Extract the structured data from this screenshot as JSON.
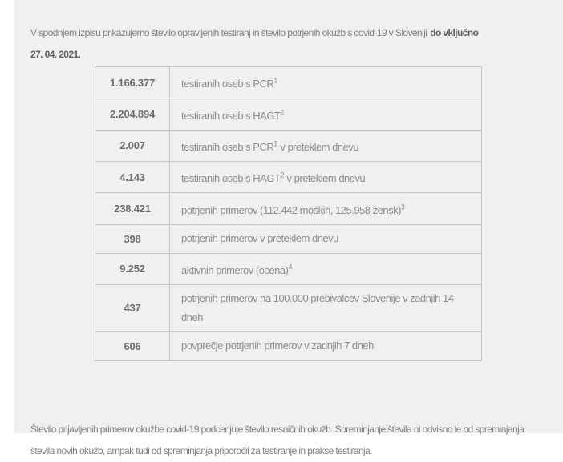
{
  "page": {
    "background": "#f1f0f0",
    "left_strip": "#ffffff",
    "border_color": "#c7c6c6"
  },
  "intro": {
    "line1": "V spodnjem izpisu prikazujemo število opravljenih testiranj in število potrjenih okužb s covid-19 v Sloveniji",
    "line1_bold": "do vključno",
    "line2_bold": "27. 04. 2021."
  },
  "table": {
    "rows": [
      {
        "value": "1.166.377",
        "label": "testiranih oseb s PCR",
        "sup": "1",
        "label_after": ""
      },
      {
        "value": "2.204.894",
        "label": "testiranih oseb s HAGT",
        "sup": "2",
        "label_after": ""
      },
      {
        "value": "2.007",
        "label": "testiranih oseb s PCR",
        "sup": "1",
        "label_after": " v preteklem dnevu"
      },
      {
        "value": "4.143",
        "label": "testiranih oseb s HAGT",
        "sup": "2",
        "label_after": " v preteklem dnevu"
      },
      {
        "value": "238.421",
        "label": "potrjenih primerov  (112.442 moških, 125.958 žensk)",
        "sup": "3",
        "label_after": ""
      },
      {
        "value": "398",
        "label": "potrjenih primerov v preteklem dnevu",
        "sup": "",
        "label_after": ""
      },
      {
        "value": "9.252",
        "label": "aktivnih primerov (ocena)",
        "sup": "4",
        "label_after": ""
      },
      {
        "value": "437",
        "label": "potrjenih primerov na 100.000 prebivalcev Slovenije v zadnjih 14 dneh",
        "sup": "",
        "label_after": ""
      },
      {
        "value": "606",
        "label": "povprečje potrjenih primerov v zadnjih 7 dneh",
        "sup": "",
        "label_after": ""
      }
    ]
  },
  "footer": {
    "text": "Število prijavljenih primerov okužbe covid-19 podcenjuje število resničnih okužb. Spreminjanje števila ni odvisno le od spreminjanja števila novih okužb, ampak tudi od spreminjanja priporočil za testiranje in prakse testiranja."
  }
}
